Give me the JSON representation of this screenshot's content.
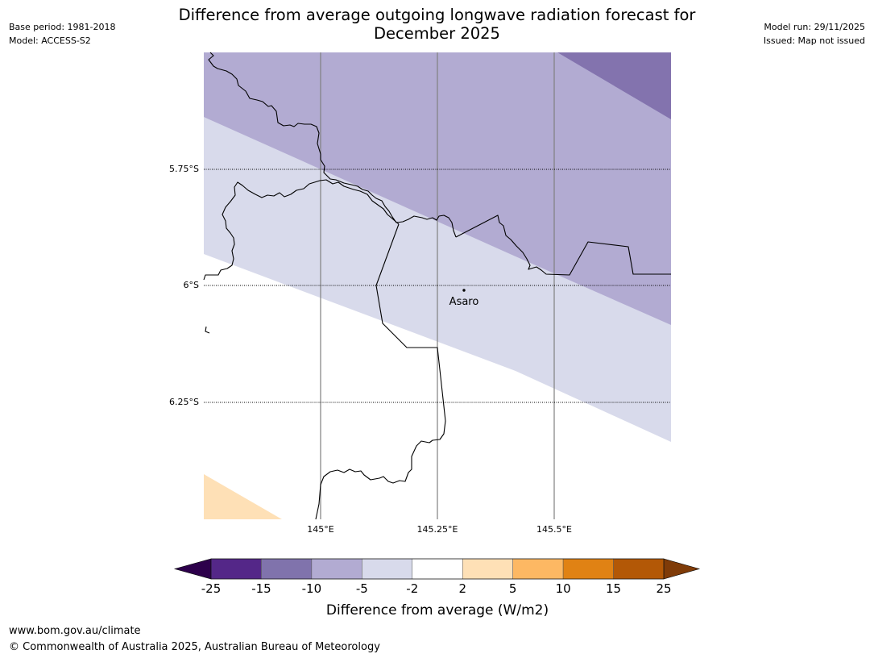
{
  "header": {
    "base_period": "Base period: 1981-2018",
    "model": "Model: ACCESS-S2",
    "title_line1": "Difference from average outgoing longwave radiation forecast for",
    "title_line2": "December 2025",
    "model_run": "Model run: 29/11/2025",
    "issued": "Issued: Map not issued"
  },
  "map": {
    "latitude_labels": [
      "5.75°S",
      "6°S",
      "6.25°S"
    ],
    "longitude_labels": [
      "145°E",
      "145.25°E",
      "145.5°E"
    ],
    "place": {
      "name": "Asaro"
    },
    "fill_colors": {
      "below_minus15": "#8373ae",
      "minus10_to_minus5": "#b2abd2",
      "minus5_to_minus2": "#d8daeb",
      "minus2_to_2": "#ffffff",
      "plus2_to_plus5": "#fee0b6"
    }
  },
  "legend": {
    "title": "Difference from average (W/m2)",
    "tick_labels": [
      "-25",
      "-15",
      "-10",
      "-5",
      "-2",
      "2",
      "5",
      "10",
      "15",
      "25"
    ],
    "colors": {
      "under_min": "#2d004b",
      "bins": [
        "#542788",
        "#8073ac",
        "#b2abd2",
        "#d8daeb",
        "#ffffff",
        "#fee0b6",
        "#fdb863",
        "#e08214",
        "#b35806"
      ],
      "over_max": "#7f3b08"
    }
  },
  "footer": {
    "url": "www.bom.gov.au/climate",
    "copyright": "© Commonwealth of Australia 2025, Australian Bureau of Meteorology"
  }
}
